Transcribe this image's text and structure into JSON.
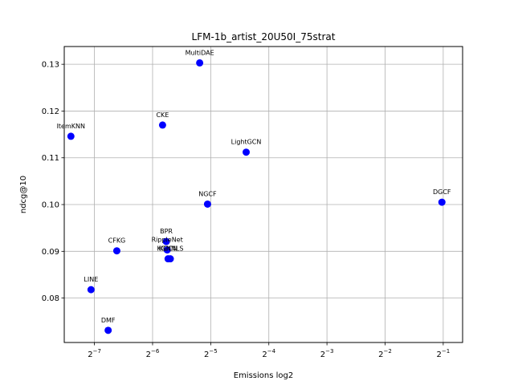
{
  "chart_data": {
    "type": "scatter",
    "title": "LFM-1b_artist_20U50I_75strat",
    "xlabel": "Emissions log2",
    "ylabel": "ndcg@10",
    "x_scale": "log2",
    "xlim": [
      0.00545,
      0.63
    ],
    "ylim": [
      0.0705,
      0.1338
    ],
    "x_ticks": [
      {
        "value": 0.0078125,
        "base": "2",
        "exp": "−7"
      },
      {
        "value": 0.015625,
        "base": "2",
        "exp": "−6"
      },
      {
        "value": 0.03125,
        "base": "2",
        "exp": "−5"
      },
      {
        "value": 0.0625,
        "base": "2",
        "exp": "−4"
      },
      {
        "value": 0.125,
        "base": "2",
        "exp": "−3"
      },
      {
        "value": 0.25,
        "base": "2",
        "exp": "−2"
      },
      {
        "value": 0.5,
        "base": "2",
        "exp": "−1"
      }
    ],
    "y_ticks": [
      {
        "value": 0.08,
        "label": "0.08"
      },
      {
        "value": 0.09,
        "label": "0.09"
      },
      {
        "value": 0.1,
        "label": "0.10"
      },
      {
        "value": 0.11,
        "label": "0.11"
      },
      {
        "value": 0.12,
        "label": "0.12"
      },
      {
        "value": 0.13,
        "label": "0.13"
      }
    ],
    "grid": true,
    "marker_color": "#0000ff",
    "points": [
      {
        "label": "MultiDAE",
        "x": 0.0274,
        "y": 0.1303
      },
      {
        "label": "CKE",
        "x": 0.0176,
        "y": 0.117
      },
      {
        "label": "ItemKNN",
        "x": 0.0059,
        "y": 0.1146
      },
      {
        "label": "LightGCN",
        "x": 0.0477,
        "y": 0.1112
      },
      {
        "label": "DGCF",
        "x": 0.4923,
        "y": 0.1005
      },
      {
        "label": "NGCF",
        "x": 0.0301,
        "y": 0.1001
      },
      {
        "label": "BPR",
        "x": 0.0184,
        "y": 0.0921
      },
      {
        "label": "RippleNet",
        "x": 0.0186,
        "y": 0.0903
      },
      {
        "label": "CFKG",
        "x": 0.0102,
        "y": 0.0901
      },
      {
        "label": "KGCN",
        "x": 0.0188,
        "y": 0.0884
      },
      {
        "label": "KGNNLS",
        "x": 0.0193,
        "y": 0.0884
      },
      {
        "label": "LINE",
        "x": 0.0075,
        "y": 0.0818
      },
      {
        "label": "DMF",
        "x": 0.0092,
        "y": 0.0731
      }
    ]
  }
}
